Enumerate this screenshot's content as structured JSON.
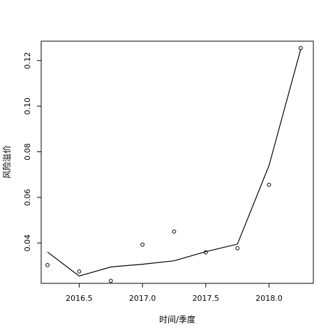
{
  "chart_data": {
    "type": "scatter",
    "title": "",
    "xlabel": "时间/季度",
    "ylabel": "风险溢价",
    "xlim": [
      2016.2,
      2018.35
    ],
    "ylim": [
      0.0223,
      0.1285
    ],
    "xticks": [
      2016.5,
      2017.0,
      2017.5,
      2018.0
    ],
    "xtick_labels": [
      "2016.5",
      "2017.0",
      "2017.5",
      "2018.0"
    ],
    "yticks": [
      0.04,
      0.06,
      0.08,
      0.1,
      0.12
    ],
    "ytick_labels": [
      "0.04",
      "0.06",
      "0.08",
      "0.10",
      "0.12"
    ],
    "grid": false,
    "legend": "none",
    "series": [
      {
        "kind": "points",
        "marker": "open-circle",
        "x": [
          2016.25,
          2016.5,
          2016.75,
          2017.0,
          2017.25,
          2017.5,
          2017.75,
          2018.0,
          2018.25
        ],
        "y": [
          0.0303,
          0.0275,
          0.0234,
          0.0393,
          0.045,
          0.0359,
          0.0377,
          0.0655,
          0.1255
        ]
      },
      {
        "kind": "line",
        "x": [
          2016.25,
          2016.5,
          2016.75,
          2017.0,
          2017.25,
          2017.5,
          2017.75,
          2018.0,
          2018.25
        ],
        "y": [
          0.036,
          0.0255,
          0.0295,
          0.0307,
          0.0322,
          0.0362,
          0.0395,
          0.074,
          0.125
        ]
      }
    ]
  }
}
